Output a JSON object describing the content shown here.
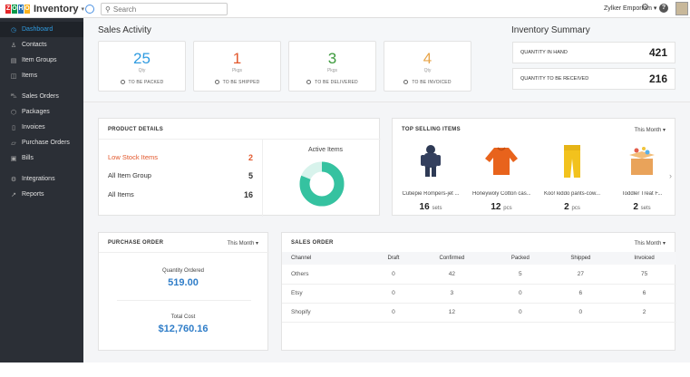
{
  "app": {
    "name": "Inventory",
    "search_placeholder": "Search",
    "org": "Zylker Emporium"
  },
  "sidebar": [
    {
      "label": "Dashboard",
      "icon": "dashboard-icon",
      "active": true
    },
    {
      "label": "Contacts",
      "icon": "contacts-icon"
    },
    {
      "label": "Item Groups",
      "icon": "item-groups-icon"
    },
    {
      "label": "Items",
      "icon": "items-icon"
    },
    {
      "label": "Sales Orders",
      "icon": "sales-orders-icon"
    },
    {
      "label": "Packages",
      "icon": "packages-icon"
    },
    {
      "label": "Invoices",
      "icon": "invoices-icon"
    },
    {
      "label": "Purchase Orders",
      "icon": "purchase-orders-icon"
    },
    {
      "label": "Bills",
      "icon": "bills-icon"
    },
    {
      "label": "Integrations",
      "icon": "integrations-icon"
    },
    {
      "label": "Reports",
      "icon": "reports-icon"
    }
  ],
  "sales_activity": {
    "title": "Sales Activity",
    "cards": [
      {
        "value": "25",
        "unit": "Qty",
        "label": "TO BE PACKED",
        "color": "#2f9be0"
      },
      {
        "value": "1",
        "unit": "Pkgs",
        "label": "TO BE SHIPPED",
        "color": "#e2572b"
      },
      {
        "value": "3",
        "unit": "Pkgs",
        "label": "TO BE DELIVERED",
        "color": "#3c9a3c"
      },
      {
        "value": "4",
        "unit": "Qty",
        "label": "TO BE INVOICED",
        "color": "#e8a54a"
      }
    ]
  },
  "inventory_summary": {
    "title": "Inventory Summary",
    "rows": [
      {
        "label": "QUANTITY IN HAND",
        "value": "421"
      },
      {
        "label": "QUANTITY TO BE RECEIVED",
        "value": "216"
      }
    ]
  },
  "product_details": {
    "title": "PRODUCT DETAILS",
    "rows": [
      {
        "label": "Low Stock Items",
        "value": "2",
        "color": "#e2572b"
      },
      {
        "label": "All Item Group",
        "value": "5"
      },
      {
        "label": "All Items",
        "value": "16"
      }
    ],
    "active_title": "Active Items",
    "active_percent": "81%",
    "active_fraction": 0.81
  },
  "top_selling": {
    "title": "TOP SELLING ITEMS",
    "period": "This Month",
    "items": [
      {
        "name": "Cutiepie Rompers-jet ...",
        "qty": "16",
        "unit": "sets",
        "icon": "romper-icon"
      },
      {
        "name": "Honeywoly Cotton cas...",
        "qty": "12",
        "unit": "pcs",
        "icon": "sweater-icon"
      },
      {
        "name": "Koo! kiddo pants-cow...",
        "qty": "2",
        "unit": "pcs",
        "icon": "pants-icon"
      },
      {
        "name": "Toddler Treat F...",
        "qty": "2",
        "unit": "sets",
        "icon": "gift-box-icon"
      }
    ]
  },
  "purchase_order": {
    "title": "PURCHASE ORDER",
    "period": "This Month",
    "qty_label": "Quantity Ordered",
    "qty_value": "519.00",
    "cost_label": "Total Cost",
    "cost_value": "$12,760.16"
  },
  "sales_order": {
    "title": "SALES ORDER",
    "period": "This Month",
    "columns": [
      "Channel",
      "Draft",
      "Confirmed",
      "Packed",
      "Shipped",
      "Invoiced"
    ],
    "rows": [
      [
        "Others",
        "0",
        "42",
        "5",
        "27",
        "75"
      ],
      [
        "Etsy",
        "0",
        "3",
        "0",
        "6",
        "6"
      ],
      [
        "Shopify",
        "0",
        "12",
        "0",
        "0",
        "2"
      ]
    ]
  }
}
